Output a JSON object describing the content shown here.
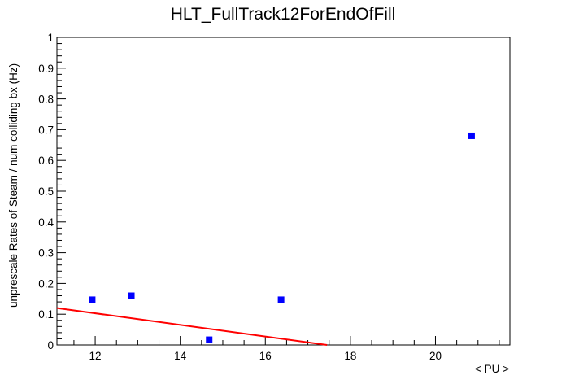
{
  "chart_data": {
    "type": "scatter",
    "title": "HLT_FullTrack12ForEndOfFill",
    "xlabel": "< PU >",
    "ylabel": "unprescale Rates of Steam / num colliding bx (Hz)",
    "xlim": [
      11.1,
      21.75
    ],
    "ylim": [
      0,
      1
    ],
    "x_ticks": [
      12,
      14,
      16,
      18,
      20
    ],
    "y_ticks": [
      0,
      0.1,
      0.2,
      0.3,
      0.4,
      0.5,
      0.6,
      0.7,
      0.8,
      0.9,
      1
    ],
    "x_tick_labels": [
      "12",
      "14",
      "16",
      "18",
      "20"
    ],
    "y_tick_labels": [
      "0",
      "0.1",
      "0.2",
      "0.3",
      "0.4",
      "0.5",
      "0.6",
      "0.7",
      "0.8",
      "0.9",
      "1"
    ],
    "grid": false,
    "series": [
      {
        "kind": "points",
        "color": "#0000ff",
        "marker": "square",
        "x": [
          11.93,
          12.85,
          14.68,
          16.37,
          20.85
        ],
        "y": [
          0.147,
          0.16,
          0.017,
          0.147,
          0.68
        ]
      },
      {
        "kind": "fit-line",
        "color": "#ff0000",
        "x": [
          11.1,
          17.45
        ],
        "y": [
          0.12,
          0
        ]
      }
    ]
  }
}
